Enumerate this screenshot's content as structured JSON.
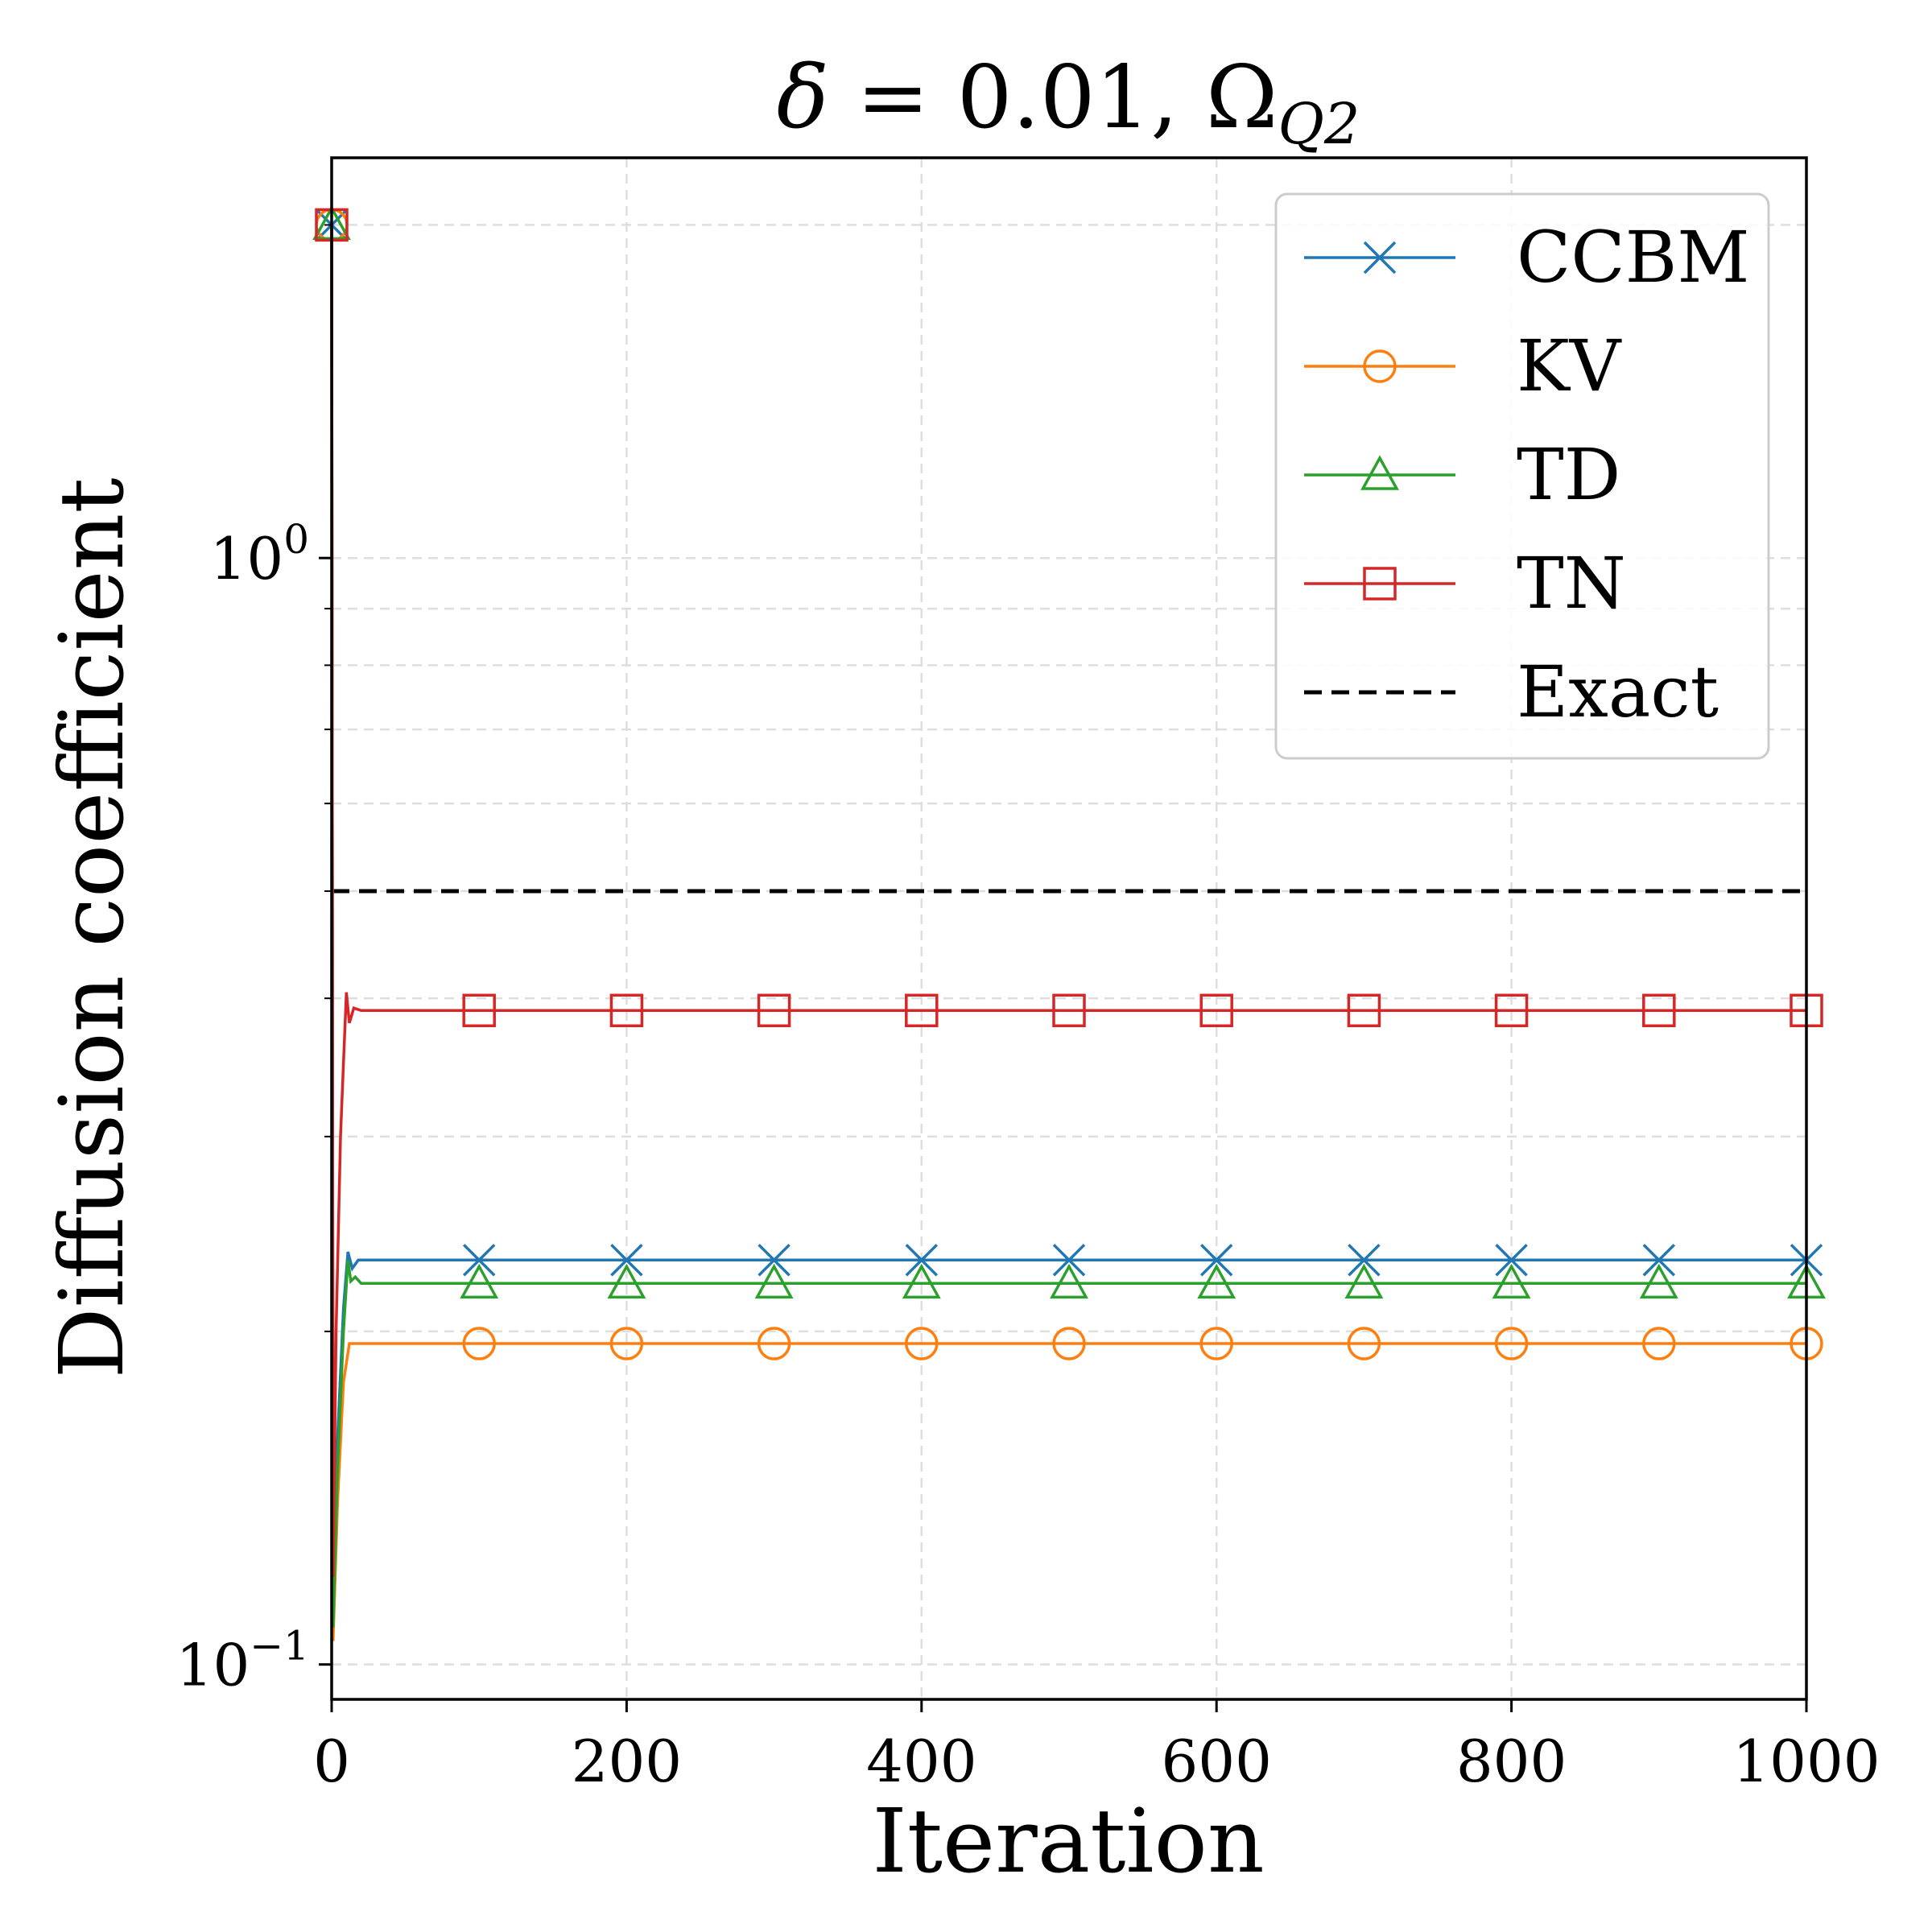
{
  "chart_data": {
    "type": "line",
    "title": {
      "delta_symbol": "δ",
      "equals": " = 0.01,  ",
      "omega_symbol": "Ω",
      "omega_subscript": "Q2"
    },
    "xlabel": "Iteration",
    "ylabel": "Diffusion coefficient",
    "x_range": [
      0,
      1000
    ],
    "y_range": [
      0.093,
      2.3
    ],
    "y_scale": "log",
    "grid": true,
    "legend_position": "top-right",
    "x_ticks": [
      {
        "value": 0,
        "label": "0"
      },
      {
        "value": 200,
        "label": "200"
      },
      {
        "value": 400,
        "label": "400"
      },
      {
        "value": 600,
        "label": "600"
      },
      {
        "value": 800,
        "label": "800"
      },
      {
        "value": 1000,
        "label": "1000"
      }
    ],
    "y_ticks": [
      {
        "value": 1,
        "base": "10",
        "exp": "0"
      },
      {
        "value": 0.1,
        "base": "10",
        "exp": "−1"
      }
    ],
    "y_minor_ticks": [
      0.2,
      0.3,
      0.4,
      0.5,
      0.6,
      0.7,
      0.8,
      0.9,
      2
    ],
    "marker_x": [
      0,
      100,
      200,
      300,
      400,
      500,
      600,
      700,
      800,
      900,
      1000
    ],
    "series": [
      {
        "name": "CCBM",
        "color": "#1f77b4",
        "marker": "x",
        "final_value": 0.232,
        "initial": [
          [
            0,
            2.0
          ],
          [
            1,
            0.11
          ],
          [
            4,
            0.16
          ],
          [
            8,
            0.21
          ],
          [
            11,
            0.236
          ],
          [
            14,
            0.228
          ],
          [
            18,
            0.232
          ]
        ]
      },
      {
        "name": "KV",
        "color": "#ff7f0e",
        "marker": "o",
        "final_value": 0.195,
        "initial": [
          [
            0,
            2.0
          ],
          [
            1,
            0.105
          ],
          [
            4,
            0.14
          ],
          [
            8,
            0.18
          ],
          [
            12,
            0.195
          ]
        ]
      },
      {
        "name": "TD",
        "color": "#2ca02c",
        "marker": "^",
        "final_value": 0.221,
        "initial": [
          [
            0,
            2.0
          ],
          [
            1,
            0.108
          ],
          [
            4,
            0.15
          ],
          [
            8,
            0.2
          ],
          [
            11,
            0.232
          ],
          [
            13,
            0.222
          ],
          [
            16,
            0.224
          ],
          [
            20,
            0.221
          ]
        ]
      },
      {
        "name": "TN",
        "color": "#d62728",
        "marker": "s",
        "final_value": 0.39,
        "initial": [
          [
            0,
            2.0
          ],
          [
            1,
            0.12
          ],
          [
            3,
            0.2
          ],
          [
            6,
            0.3
          ],
          [
            8,
            0.35
          ],
          [
            10,
            0.405
          ],
          [
            12,
            0.38
          ],
          [
            15,
            0.392
          ],
          [
            20,
            0.39
          ]
        ]
      }
    ],
    "reference": {
      "name": "Exact",
      "value": 0.5,
      "color": "#000000",
      "style": "dashed"
    }
  }
}
